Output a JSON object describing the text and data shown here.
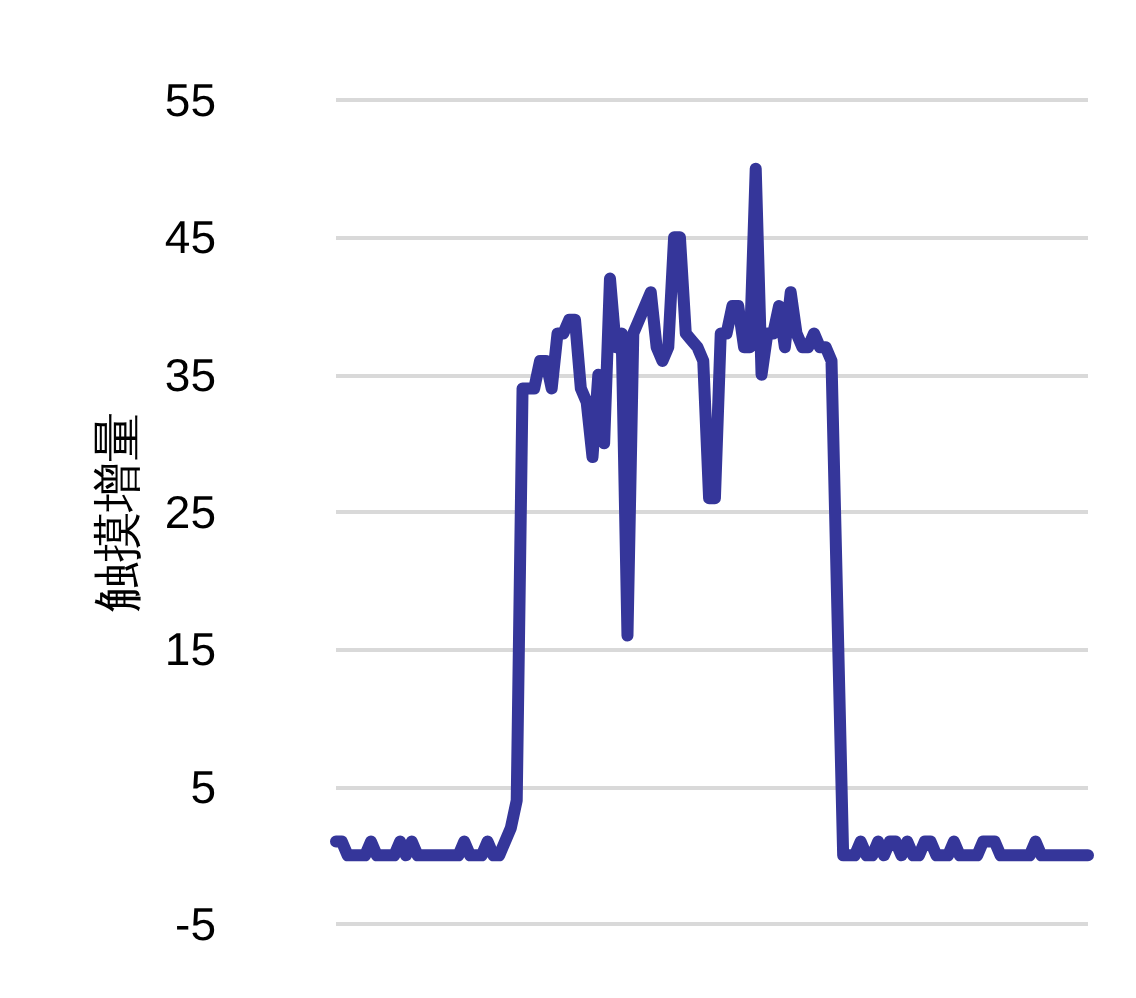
{
  "chart_data": {
    "type": "line",
    "ylabel": "触摸增量",
    "categories": [
      null,
      null,
      null,
      null,
      null,
      null,
      null,
      null,
      null,
      null,
      null,
      null,
      null,
      null,
      null,
      null,
      null,
      null,
      null,
      null,
      null,
      null,
      null,
      null,
      null,
      null,
      null,
      null,
      null,
      null,
      null,
      null,
      null,
      null,
      null,
      null,
      null,
      null,
      null,
      null,
      null,
      null,
      null,
      null,
      null,
      null,
      null,
      null,
      null,
      null,
      null,
      null,
      null,
      null,
      null,
      null,
      null,
      null,
      null,
      null,
      null,
      null,
      null,
      null,
      null,
      null,
      null,
      null,
      null,
      null,
      null,
      null,
      null,
      null,
      null,
      null,
      null,
      null,
      null,
      null,
      null,
      null,
      null,
      null,
      null,
      null,
      null,
      null,
      null,
      null,
      null,
      null,
      null,
      null,
      null,
      null,
      null,
      null,
      null,
      null,
      null,
      null,
      null,
      null,
      null,
      null,
      null,
      null,
      null,
      null,
      null,
      null,
      null,
      null,
      null,
      null,
      null,
      null,
      null,
      null,
      null,
      null,
      null,
      null,
      null,
      null,
      null,
      null,
      null,
      null
    ],
    "series": [
      {
        "color": "#35369a",
        "values": [
          1,
          1,
          0,
          0,
          0,
          0,
          1,
          0,
          0,
          0,
          0,
          1,
          0,
          1,
          0,
          0,
          0,
          0,
          0,
          0,
          0,
          0,
          1,
          0,
          0,
          0,
          1,
          0,
          0,
          1,
          2,
          4,
          34,
          34,
          34,
          36,
          36,
          34,
          38,
          38,
          39,
          39,
          34,
          33,
          29,
          35,
          30,
          42,
          37,
          38,
          16,
          38,
          39,
          40,
          41,
          37,
          36,
          37,
          45,
          45,
          38,
          37.5,
          37,
          36,
          26,
          26,
          38,
          38,
          40,
          40,
          37,
          37,
          50,
          35,
          38,
          38,
          40,
          37,
          41,
          38,
          37,
          37,
          38,
          37,
          37,
          36,
          18,
          0,
          0,
          0,
          1,
          0,
          0,
          1,
          0,
          1,
          1,
          0,
          1,
          0,
          0,
          1,
          1,
          0,
          0,
          0,
          1,
          0,
          0,
          0,
          0,
          1,
          1,
          1,
          0,
          0,
          0,
          0,
          0,
          0,
          1,
          0,
          0,
          0,
          0,
          0,
          0,
          0,
          0,
          0
        ]
      }
    ],
    "ylim": [
      -5,
      55
    ],
    "yticks": [
      -5,
      5,
      15,
      25,
      35,
      45,
      55
    ],
    "grid": "y",
    "marker": "none",
    "line_style": "solid"
  }
}
